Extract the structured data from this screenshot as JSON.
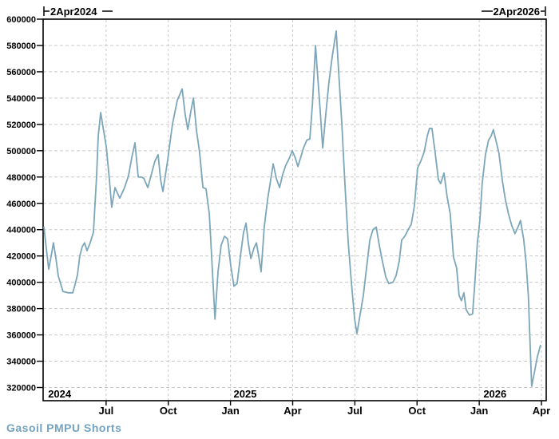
{
  "chart": {
    "annotations": {
      "left": "2Apr2024",
      "right": "2Apr2026"
    },
    "legend": "Gasoil PMPU Shorts",
    "colors": {
      "line": "#7CA6BA",
      "legend_text": "#74A2C1",
      "grid": "#C9C9C9",
      "axis": "#000000",
      "background": "#FFFFFF"
    }
  },
  "chart_data": {
    "type": "line",
    "title": "",
    "series_name": "Gasoil PMPU Shorts",
    "x_range_labels": [
      "2Apr2024",
      "2Apr2026"
    ],
    "xlabel": "",
    "ylabel": "",
    "ylim": [
      320000,
      600000
    ],
    "grid": true,
    "legend_position": "bottom-left",
    "y_ticks": [
      {
        "v": 600000,
        "label": "600000"
      },
      {
        "v": 580000,
        "label": "580000"
      },
      {
        "v": 560000,
        "label": "560000"
      },
      {
        "v": 540000,
        "label": "540000"
      },
      {
        "v": 520000,
        "label": "520000"
      },
      {
        "v": 500000,
        "label": "500000"
      },
      {
        "v": 480000,
        "label": "480000"
      },
      {
        "v": 460000,
        "label": "460000"
      },
      {
        "v": 440000,
        "label": "440000"
      },
      {
        "v": 420000,
        "label": "420000"
      },
      {
        "v": 400000,
        "label": "400000"
      },
      {
        "v": 380000,
        "label": "380000"
      },
      {
        "v": 360000,
        "label": "360000"
      },
      {
        "v": 340000,
        "label": "340000"
      },
      {
        "v": 320000,
        "label": "320000"
      }
    ],
    "x_ticks": [
      {
        "m": 3,
        "label": "Jul"
      },
      {
        "m": 6,
        "label": "Oct"
      },
      {
        "m": 9,
        "label": "Jan"
      },
      {
        "m": 12,
        "label": "Apr"
      },
      {
        "m": 15,
        "label": "Jul"
      },
      {
        "m": 18,
        "label": "Oct"
      },
      {
        "m": 21,
        "label": "Jan"
      },
      {
        "m": 24,
        "label": "Apr"
      }
    ],
    "year_labels": [
      {
        "m": 0.2,
        "label": "2024"
      },
      {
        "m": 9.15,
        "label": "2025"
      },
      {
        "m": 21.2,
        "label": "2026"
      }
    ],
    "points": [
      [
        0,
        442000
      ],
      [
        0.12,
        425000
      ],
      [
        0.23,
        410000
      ],
      [
        0.35,
        420000
      ],
      [
        0.46,
        430000
      ],
      [
        0.58,
        418000
      ],
      [
        0.69,
        405000
      ],
      [
        0.92,
        393000
      ],
      [
        1.16,
        392000
      ],
      [
        1.39,
        392000
      ],
      [
        1.5,
        398000
      ],
      [
        1.62,
        406000
      ],
      [
        1.73,
        420000
      ],
      [
        1.85,
        427000
      ],
      [
        1.96,
        430000
      ],
      [
        2.08,
        424000
      ],
      [
        2.23,
        430000
      ],
      [
        2.39,
        438000
      ],
      [
        2.54,
        480000
      ],
      [
        2.62,
        511000
      ],
      [
        2.74,
        529000
      ],
      [
        2.85,
        518000
      ],
      [
        3.01,
        503000
      ],
      [
        3.16,
        478000
      ],
      [
        3.27,
        457000
      ],
      [
        3.43,
        472000
      ],
      [
        3.54,
        468000
      ],
      [
        3.66,
        464000
      ],
      [
        3.89,
        472000
      ],
      [
        4.08,
        481000
      ],
      [
        4.24,
        495000
      ],
      [
        4.39,
        506000
      ],
      [
        4.55,
        480000
      ],
      [
        4.7,
        480000
      ],
      [
        4.82,
        479000
      ],
      [
        5.01,
        472000
      ],
      [
        5.2,
        483000
      ],
      [
        5.35,
        492000
      ],
      [
        5.51,
        497000
      ],
      [
        5.63,
        478000
      ],
      [
        5.74,
        469000
      ],
      [
        5.97,
        493000
      ],
      [
        6.2,
        520000
      ],
      [
        6.43,
        538000
      ],
      [
        6.67,
        547000
      ],
      [
        6.82,
        527000
      ],
      [
        6.94,
        516000
      ],
      [
        7.09,
        530000
      ],
      [
        7.21,
        540000
      ],
      [
        7.36,
        515000
      ],
      [
        7.51,
        499000
      ],
      [
        7.67,
        472000
      ],
      [
        7.82,
        471000
      ],
      [
        7.98,
        452000
      ],
      [
        8.09,
        420000
      ],
      [
        8.25,
        372000
      ],
      [
        8.4,
        408000
      ],
      [
        8.55,
        428000
      ],
      [
        8.71,
        435000
      ],
      [
        8.86,
        433000
      ],
      [
        9.02,
        412000
      ],
      [
        9.17,
        397000
      ],
      [
        9.32,
        399000
      ],
      [
        9.48,
        420000
      ],
      [
        9.63,
        438000
      ],
      [
        9.75,
        445000
      ],
      [
        9.86,
        430000
      ],
      [
        9.98,
        418000
      ],
      [
        10.13,
        426000
      ],
      [
        10.25,
        430000
      ],
      [
        10.37,
        419000
      ],
      [
        10.48,
        408000
      ],
      [
        10.63,
        442000
      ],
      [
        10.79,
        463000
      ],
      [
        10.94,
        478000
      ],
      [
        11.06,
        490000
      ],
      [
        11.21,
        479000
      ],
      [
        11.37,
        472000
      ],
      [
        11.52,
        482000
      ],
      [
        11.67,
        489000
      ],
      [
        11.83,
        494000
      ],
      [
        11.98,
        500000
      ],
      [
        12.14,
        494000
      ],
      [
        12.25,
        488000
      ],
      [
        12.41,
        496000
      ],
      [
        12.52,
        502000
      ],
      [
        12.68,
        508000
      ],
      [
        12.83,
        509000
      ],
      [
        12.95,
        535000
      ],
      [
        13.1,
        580000
      ],
      [
        13.21,
        556000
      ],
      [
        13.33,
        530000
      ],
      [
        13.45,
        502000
      ],
      [
        13.6,
        528000
      ],
      [
        13.75,
        552000
      ],
      [
        13.91,
        572000
      ],
      [
        14.1,
        591000
      ],
      [
        14.22,
        560000
      ],
      [
        14.37,
        521000
      ],
      [
        14.52,
        475000
      ],
      [
        14.68,
        430000
      ],
      [
        14.83,
        400000
      ],
      [
        14.99,
        372000
      ],
      [
        15.1,
        361000
      ],
      [
        15.26,
        376000
      ],
      [
        15.41,
        390000
      ],
      [
        15.57,
        412000
      ],
      [
        15.72,
        432000
      ],
      [
        15.87,
        440000
      ],
      [
        16.03,
        442000
      ],
      [
        16.18,
        428000
      ],
      [
        16.34,
        415000
      ],
      [
        16.49,
        404000
      ],
      [
        16.64,
        399000
      ],
      [
        16.84,
        400000
      ],
      [
        16.99,
        405000
      ],
      [
        17.14,
        416000
      ],
      [
        17.26,
        432000
      ],
      [
        17.41,
        435000
      ],
      [
        17.57,
        440000
      ],
      [
        17.72,
        444000
      ],
      [
        17.87,
        458000
      ],
      [
        18.03,
        487000
      ],
      [
        18.18,
        492000
      ],
      [
        18.34,
        499000
      ],
      [
        18.49,
        511000
      ],
      [
        18.6,
        517000
      ],
      [
        18.72,
        517000
      ],
      [
        18.87,
        499000
      ],
      [
        19.03,
        478000
      ],
      [
        19.14,
        475000
      ],
      [
        19.3,
        483000
      ],
      [
        19.45,
        465000
      ],
      [
        19.6,
        452000
      ],
      [
        19.76,
        419000
      ],
      [
        19.91,
        411000
      ],
      [
        20.03,
        390000
      ],
      [
        20.14,
        386000
      ],
      [
        20.26,
        392000
      ],
      [
        20.37,
        379000
      ],
      [
        20.53,
        375000
      ],
      [
        20.68,
        376000
      ],
      [
        20.8,
        402000
      ],
      [
        20.91,
        430000
      ],
      [
        21.03,
        447000
      ],
      [
        21.14,
        475000
      ],
      [
        21.3,
        497000
      ],
      [
        21.45,
        508000
      ],
      [
        21.57,
        511000
      ],
      [
        21.68,
        516000
      ],
      [
        21.8,
        508000
      ],
      [
        21.95,
        498000
      ],
      [
        22.11,
        478000
      ],
      [
        22.26,
        463000
      ],
      [
        22.41,
        452000
      ],
      [
        22.57,
        443000
      ],
      [
        22.72,
        437000
      ],
      [
        22.87,
        442000
      ],
      [
        22.99,
        447000
      ],
      [
        23.14,
        433000
      ],
      [
        23.26,
        415000
      ],
      [
        23.37,
        390000
      ],
      [
        23.45,
        355000
      ],
      [
        23.53,
        321000
      ],
      [
        23.64,
        330000
      ],
      [
        23.8,
        343000
      ],
      [
        23.95,
        352000
      ]
    ]
  }
}
